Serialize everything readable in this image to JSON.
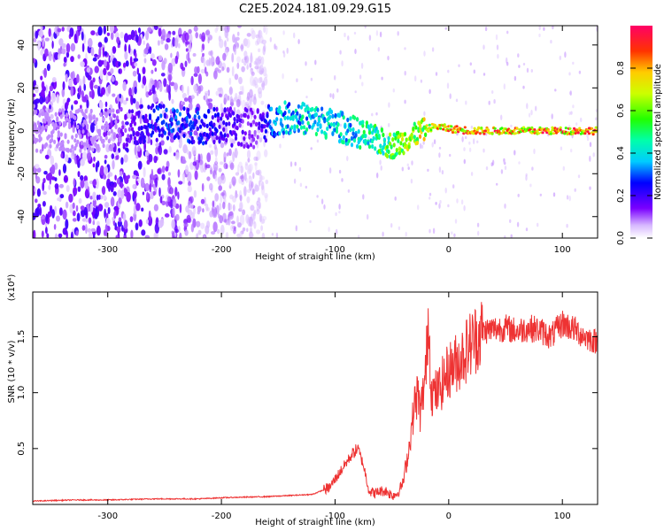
{
  "title": "C2E5.2024.181.09.29.G15",
  "chart_data": [
    {
      "type": "heatmap",
      "xlabel": "Height of straight line (km)",
      "ylabel": "Frequency (Hz)",
      "xlim": [
        -366,
        131
      ],
      "ylim": [
        -50,
        49
      ],
      "xticks": [
        -300,
        -200,
        -100,
        0,
        100
      ],
      "yticks": [
        -40,
        -20,
        0,
        20,
        40
      ],
      "colorbar": {
        "label": "Normalized spectral amplitude",
        "range": [
          0.0,
          1.0
        ],
        "ticks": [
          0.0,
          0.2,
          0.4,
          0.6,
          0.8
        ]
      },
      "carrier_track": {
        "x": [
          -366,
          -300,
          -260,
          -240,
          -200,
          -170,
          -150,
          -130,
          -110,
          -90,
          -75,
          -60,
          -50,
          -40,
          -30,
          -20,
          -10,
          0,
          20,
          50,
          100,
          131
        ],
        "frequency": [
          0,
          0,
          4,
          3,
          2,
          1,
          6,
          6,
          4,
          1,
          -2,
          -5,
          -7,
          -5,
          -2,
          1,
          2,
          1,
          0,
          0,
          0,
          0
        ],
        "amplitude": [
          0.05,
          0.08,
          0.3,
          0.35,
          0.25,
          0.15,
          0.45,
          0.5,
          0.5,
          0.5,
          0.55,
          0.65,
          0.7,
          0.75,
          0.8,
          0.85,
          0.9,
          0.95,
          1.0,
          1.0,
          1.0,
          1.0
        ]
      },
      "noise_region": {
        "x_range": [
          -366,
          -160
        ],
        "frequency_range": [
          -50,
          49
        ]
      },
      "grid": false
    },
    {
      "type": "line",
      "xlabel": "Height of straight line (km)",
      "ylabel": "SNR (10 * v/v)",
      "y_multiplier": "(x10⁴)",
      "xlim": [
        -366,
        131
      ],
      "ylim": [
        0.0,
        1.9
      ],
      "xticks": [
        -300,
        -200,
        -100,
        0,
        100
      ],
      "yticks": [
        0.5,
        1.0,
        1.5
      ],
      "series": [
        {
          "color": "#ee3333",
          "x": [
            -366,
            -330,
            -300,
            -260,
            -220,
            -200,
            -160,
            -120,
            -105,
            -95,
            -85,
            -80,
            -75,
            -70,
            -65,
            -60,
            -55,
            -50,
            -45,
            -40,
            -35,
            -30,
            -27,
            -25,
            -20,
            -18,
            -15,
            -10,
            -5,
            0,
            10,
            20,
            30,
            40,
            50,
            60,
            70,
            80,
            90,
            100,
            110,
            120,
            131
          ],
          "y": [
            0.03,
            0.04,
            0.04,
            0.05,
            0.05,
            0.06,
            0.07,
            0.09,
            0.15,
            0.3,
            0.45,
            0.5,
            0.35,
            0.12,
            0.1,
            0.12,
            0.12,
            0.08,
            0.1,
            0.2,
            0.5,
            0.9,
            1.0,
            0.8,
            1.2,
            1.7,
            1.0,
            1.0,
            1.1,
            1.2,
            1.3,
            1.45,
            1.55,
            1.57,
            1.58,
            1.55,
            1.58,
            1.56,
            1.5,
            1.62,
            1.57,
            1.5,
            1.45
          ]
        }
      ]
    }
  ]
}
